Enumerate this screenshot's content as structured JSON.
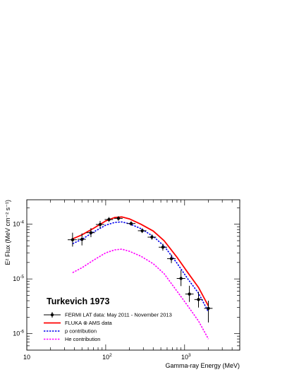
{
  "chart_data": {
    "type": "line",
    "title": "Turkevich 1973",
    "xlabel": "Gamma-ray Energy (MeV)",
    "ylabel": "E² Flux (MeV cm⁻² s⁻¹)",
    "xscale": "log",
    "yscale": "log",
    "xlim": [
      10,
      5000
    ],
    "ylim": [
      5e-07,
      0.00028
    ],
    "x_tick_labels": [
      {
        "value": 10,
        "base": "10",
        "exp": ""
      },
      {
        "value": 100,
        "base": "10",
        "exp": "2"
      },
      {
        "value": 1000,
        "base": "10",
        "exp": "3"
      }
    ],
    "y_tick_labels": [
      {
        "value": 1e-06,
        "base": "10",
        "exp": "-6"
      },
      {
        "value": 1e-05,
        "base": "10",
        "exp": "-5"
      },
      {
        "value": 0.0001,
        "base": "10",
        "exp": "-4"
      }
    ],
    "legend_position": "bottom-left",
    "series": [
      {
        "name": "FERMI LAT data: May 2011 - November 2013",
        "kind": "points",
        "color": "#000000",
        "points": [
          {
            "x": 38,
            "y": 5.2e-05,
            "xlo": 33,
            "xhi": 43,
            "ylo": 3.9e-05,
            "yhi": 7e-05
          },
          {
            "x": 50,
            "y": 5.3e-05,
            "xlo": 44,
            "xhi": 56,
            "ylo": 4.1e-05,
            "yhi": 6.8e-05
          },
          {
            "x": 65,
            "y": 7e-05,
            "xlo": 57,
            "xhi": 73,
            "ylo": 5.8e-05,
            "yhi": 8.5e-05
          },
          {
            "x": 85,
            "y": 9.9e-05,
            "xlo": 75,
            "xhi": 96,
            "ylo": 8.5e-05,
            "yhi": 0.000115
          },
          {
            "x": 110,
            "y": 0.000122,
            "xlo": 97,
            "xhi": 124,
            "ylo": 0.00011,
            "yhi": 0.000135
          },
          {
            "x": 145,
            "y": 0.000128,
            "xlo": 128,
            "xhi": 164,
            "ylo": 0.000116,
            "yhi": 0.00014
          },
          {
            "x": 210,
            "y": 0.000103,
            "xlo": 186,
            "xhi": 238,
            "ylo": 9.4e-05,
            "yhi": 0.000113
          },
          {
            "x": 290,
            "y": 7.6e-05,
            "xlo": 256,
            "xhi": 328,
            "ylo": 6.9e-05,
            "yhi": 8.4e-05
          },
          {
            "x": 385,
            "y": 5.8e-05,
            "xlo": 340,
            "xhi": 435,
            "ylo": 5.2e-05,
            "yhi": 6.5e-05
          },
          {
            "x": 530,
            "y": 3.8e-05,
            "xlo": 470,
            "xhi": 600,
            "ylo": 3.3e-05,
            "yhi": 4.4e-05
          },
          {
            "x": 680,
            "y": 2.35e-05,
            "xlo": 600,
            "xhi": 770,
            "ylo": 1.95e-05,
            "yhi": 2.8e-05
          },
          {
            "x": 900,
            "y": 1.02e-05,
            "xlo": 795,
            "xhi": 1020,
            "ylo": 7.4e-06,
            "yhi": 1.45e-05
          },
          {
            "x": 1150,
            "y": 5.3e-06,
            "xlo": 1020,
            "xhi": 1300,
            "ylo": 3.8e-06,
            "yhi": 7.5e-06
          },
          {
            "x": 1500,
            "y": 4.2e-06,
            "xlo": 1330,
            "xhi": 1700,
            "ylo": 3e-06,
            "yhi": 5.8e-06
          },
          {
            "x": 2000,
            "y": 2.9e-06,
            "xlo": 1770,
            "xhi": 2260,
            "ylo": 1.6e-06,
            "yhi": 4e-06
          }
        ]
      },
      {
        "name": "FLUKA ⊗ AMS data",
        "kind": "line",
        "color": "#ff0000",
        "dash": "solid",
        "x": [
          38,
          50,
          70,
          100,
          130,
          160,
          200,
          280,
          400,
          550,
          800,
          1100,
          1500,
          2000
        ],
        "y": [
          5.4e-05,
          6.4e-05,
          8.4e-05,
          0.000115,
          0.000133,
          0.000136,
          0.000125,
          0.0001,
          7.5e-05,
          5e-05,
          2.5e-05,
          1.3e-05,
          7e-06,
          3.2e-06
        ]
      },
      {
        "name": "p contribution",
        "kind": "line",
        "color": "#0000ee",
        "dash": "dotted",
        "x": [
          38,
          50,
          70,
          100,
          130,
          160,
          200,
          280,
          400,
          550,
          800,
          1100,
          1500,
          2000
        ],
        "y": [
          4.4e-05,
          5.3e-05,
          7.2e-05,
          9.6e-05,
          0.000108,
          0.00011,
          0.000102,
          8.3e-05,
          6e-05,
          4e-05,
          1.95e-05,
          1e-05,
          5.5e-06,
          2.5e-06
        ]
      },
      {
        "name": "He contribution",
        "kind": "line",
        "color": "#ff00ff",
        "dash": "dotted",
        "x": [
          38,
          50,
          70,
          100,
          130,
          160,
          200,
          280,
          400,
          550,
          800,
          1100,
          1500,
          2000
        ],
        "y": [
          1.3e-05,
          1.6e-05,
          2.2e-05,
          3e-05,
          3.4e-05,
          3.5e-05,
          3.2e-05,
          2.6e-05,
          1.9e-05,
          1.25e-05,
          6e-06,
          3.2e-06,
          1.7e-06,
          8e-07
        ]
      }
    ]
  }
}
